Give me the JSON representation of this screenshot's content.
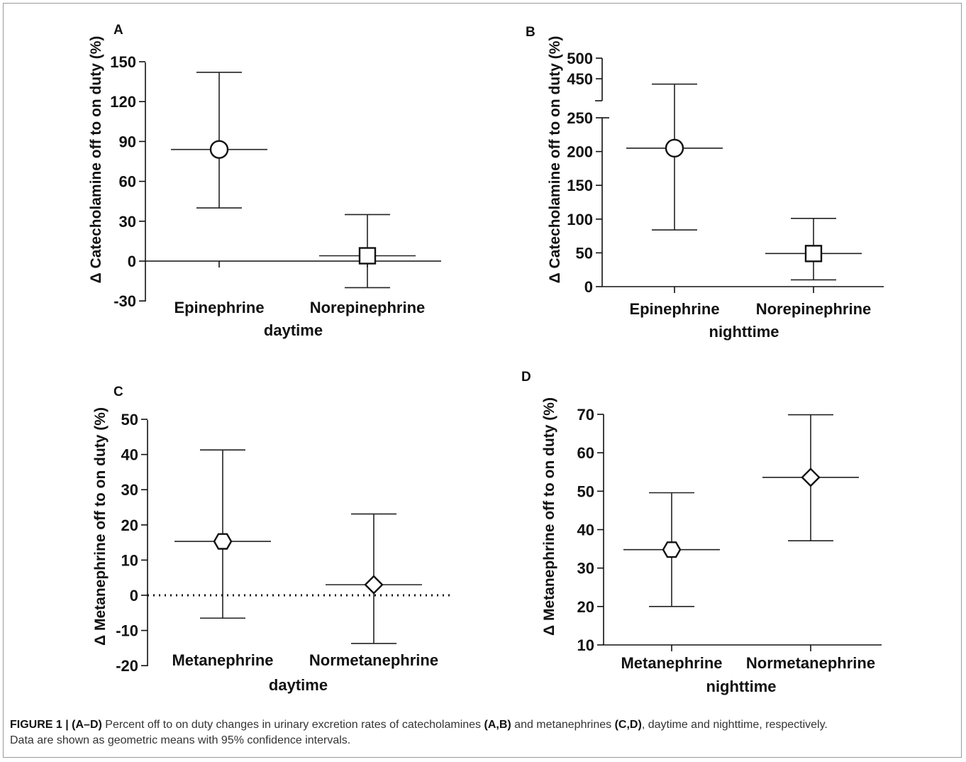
{
  "chart_data": [
    {
      "panel": "A",
      "type": "scatter",
      "ylabel": "Δ Catecholamine off to on duty (%)",
      "xlabel": "daytime",
      "categories": [
        "Epinephrine",
        "Norepinephrine"
      ],
      "ylim": [
        -30,
        150
      ],
      "yticks": [
        -30,
        0,
        30,
        60,
        90,
        120,
        150
      ],
      "zero_line": "solid",
      "points": [
        {
          "category": "Epinephrine",
          "mean": 84,
          "ci_low": 40,
          "ci_high": 142,
          "marker": "circle"
        },
        {
          "category": "Norepinephrine",
          "mean": 4,
          "ci_low": -20,
          "ci_high": 35,
          "marker": "square"
        }
      ]
    },
    {
      "panel": "B",
      "type": "scatter",
      "ylabel": "Δ Catecholamine off to on duty (%)",
      "xlabel": "nighttime",
      "categories": [
        "Epinephrine",
        "Norepinephrine"
      ],
      "ylim": [
        0,
        500
      ],
      "axis_break": [
        250,
        425
      ],
      "yticks": [
        0,
        50,
        100,
        150,
        200,
        250,
        450,
        500
      ],
      "points": [
        {
          "category": "Epinephrine",
          "mean": 205,
          "ci_low": 84,
          "ci_high": 437,
          "marker": "circle"
        },
        {
          "category": "Norepinephrine",
          "mean": 49,
          "ci_low": 10,
          "ci_high": 101,
          "marker": "square"
        }
      ]
    },
    {
      "panel": "C",
      "type": "scatter",
      "ylabel": "Δ Metanephrine off to on duty (%)",
      "xlabel": "daytime",
      "categories": [
        "Metanephrine",
        "Normetanephrine"
      ],
      "ylim": [
        -20,
        50
      ],
      "yticks": [
        -20,
        -10,
        0,
        10,
        20,
        30,
        40,
        50
      ],
      "zero_line": "dotted",
      "points": [
        {
          "category": "Metanephrine",
          "mean": 15.3,
          "ci_low": -6.5,
          "ci_high": 41.3,
          "marker": "hexagon"
        },
        {
          "category": "Normetanephrine",
          "mean": 3,
          "ci_low": -13.7,
          "ci_high": 23.1,
          "marker": "diamond"
        }
      ]
    },
    {
      "panel": "D",
      "type": "scatter",
      "ylabel": "Δ Metanephrine off to on duty (%)",
      "xlabel": "nighttime",
      "categories": [
        "Metanephrine",
        "Normetanephrine"
      ],
      "ylim": [
        10,
        70
      ],
      "yticks": [
        10,
        20,
        30,
        40,
        50,
        60,
        70
      ],
      "points": [
        {
          "category": "Metanephrine",
          "mean": 34.8,
          "ci_low": 20,
          "ci_high": 49.6,
          "marker": "hexagon"
        },
        {
          "category": "Normetanephrine",
          "mean": 53.6,
          "ci_low": 37.1,
          "ci_high": 69.9,
          "marker": "diamond"
        }
      ]
    }
  ],
  "caption": {
    "figure_label": "FIGURE 1 | (A–D)",
    "part1": " Percent off to on duty changes in urinary excretion rates of catecholamines ",
    "ref1": "(A,B)",
    "part2": " and metanephrines ",
    "ref2": "(C,D)",
    "part3": ", daytime and nighttime, respectively.",
    "line2": "Data are shown as geometric means with 95% confidence intervals."
  }
}
